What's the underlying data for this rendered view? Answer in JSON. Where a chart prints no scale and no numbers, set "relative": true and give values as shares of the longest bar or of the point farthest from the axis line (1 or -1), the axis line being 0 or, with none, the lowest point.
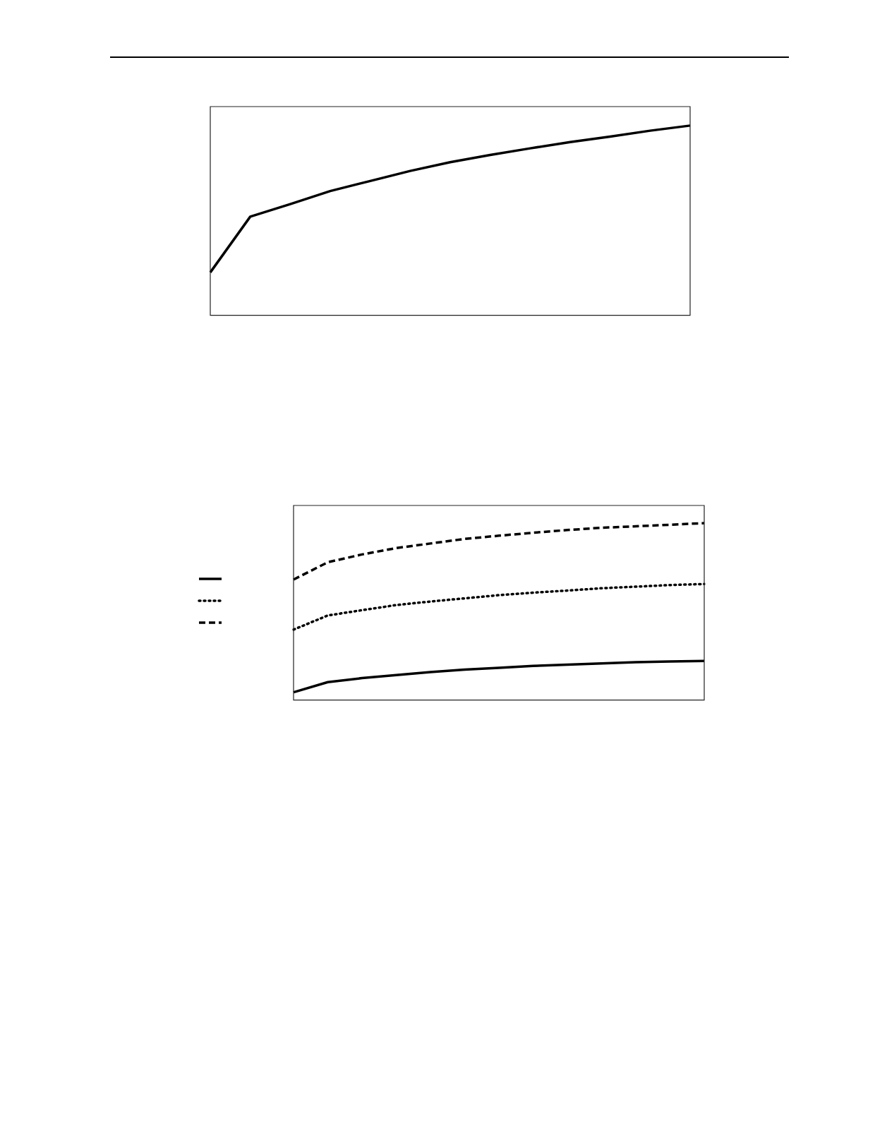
{
  "chart_data": [
    {
      "type": "line",
      "relative": true,
      "categories": [
        null,
        null,
        null,
        null,
        null,
        null,
        null,
        null,
        null,
        null,
        null,
        null,
        null
      ],
      "grid": false,
      "marker": "none",
      "legend": false,
      "series": [
        {
          "color": "#000000",
          "line_style": "solid",
          "values": [
            0.226,
            0.52,
            0.586,
            0.655,
            0.708,
            0.761,
            0.807,
            0.845,
            0.88,
            0.913,
            0.942,
            0.973,
            1
          ]
        }
      ]
    },
    {
      "type": "line",
      "relative": true,
      "categories": [
        null,
        null,
        null,
        null,
        null,
        null,
        null,
        null,
        null,
        null,
        null,
        null,
        null
      ],
      "grid": false,
      "marker": "none",
      "series": [
        {
          "color": "#000000",
          "line_style": "solid",
          "values": [
            0.044,
            0.101,
            0.124,
            0.141,
            0.158,
            0.172,
            0.182,
            0.193,
            0.2,
            0.207,
            0.214,
            0.218,
            0.221
          ]
        },
        {
          "color": "#000000",
          "line_style": "dotted",
          "values": [
            0.398,
            0.478,
            0.508,
            0.537,
            0.557,
            0.575,
            0.593,
            0.607,
            0.619,
            0.632,
            0.641,
            0.65,
            0.656
          ]
        },
        {
          "color": "#000000",
          "line_style": "dashed",
          "values": [
            0.681,
            0.779,
            0.823,
            0.859,
            0.885,
            0.911,
            0.929,
            0.946,
            0.961,
            0.974,
            0.982,
            0.991,
            1
          ]
        }
      ]
    }
  ]
}
